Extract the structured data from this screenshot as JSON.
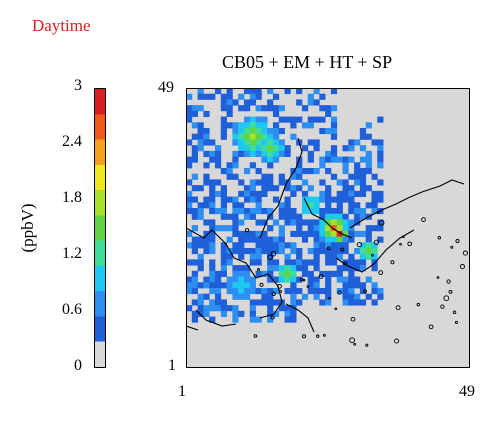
{
  "panel_label": "Daytime",
  "chart_data": {
    "type": "heatmap",
    "title": "CB05 + EM + HT + SP",
    "colorbar": {
      "label": "(ppbV)",
      "ticks": [
        "0",
        "0.6",
        "1.2",
        "1.8",
        "2.4",
        "3"
      ],
      "range": [
        0,
        3
      ],
      "colors": [
        "#d8d8d8",
        "#1f5fd8",
        "#2d8ff0",
        "#1fc8f0",
        "#3fdc9a",
        "#62d444",
        "#a8e02a",
        "#f0e81c",
        "#f5a01c",
        "#ef5a1a",
        "#d81f1f"
      ]
    },
    "x_ticks": [
      "1",
      "49"
    ],
    "y_ticks": [
      "1",
      "49"
    ],
    "grid_size": [
      49,
      49
    ],
    "background": "#d8d8d8"
  }
}
